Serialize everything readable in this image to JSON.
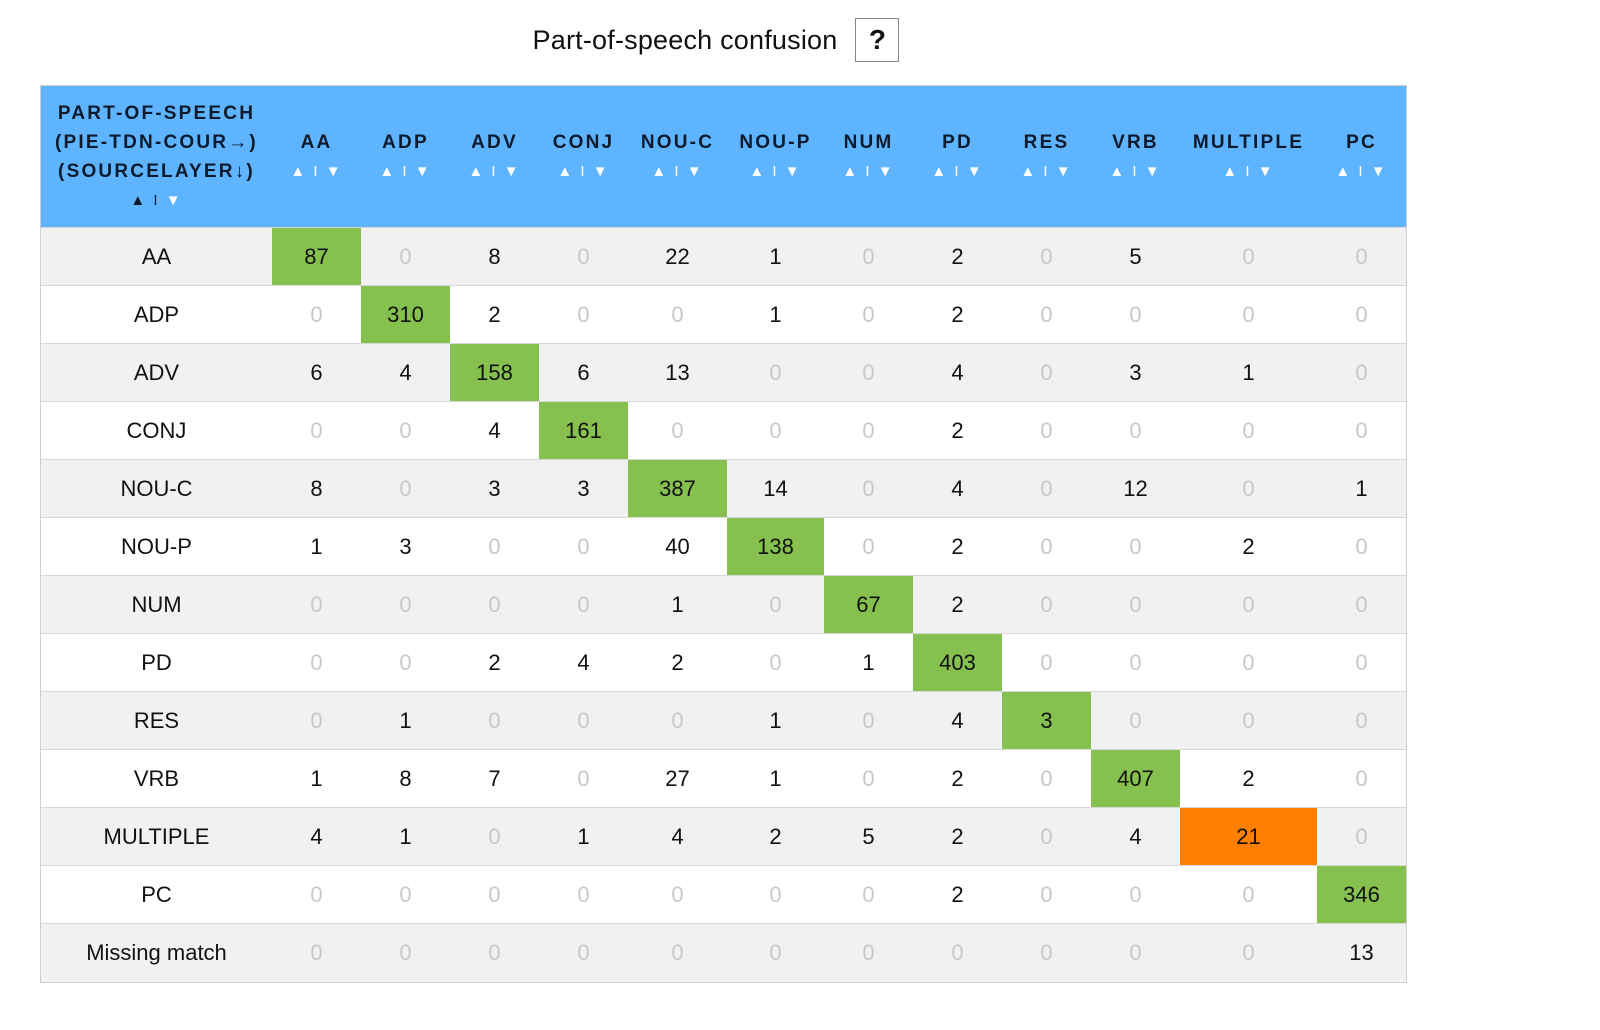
{
  "title": "Part-of-speech confusion",
  "help_label": "?",
  "corner_header": {
    "line1": "PART-OF-SPEECH",
    "line2": "(PIE-TDN-COUR→)",
    "line3": "(SOURCELAYER↓)"
  },
  "sort_up": "▲",
  "sort_sep": "I",
  "sort_down": "▼",
  "colors": {
    "header": "#5fb4ff",
    "diagonal": "#86c04e",
    "highlight": "#ff8000"
  },
  "columns": [
    "AA",
    "ADP",
    "ADV",
    "CONJ",
    "NOU-C",
    "NOU-P",
    "NUM",
    "PD",
    "RES",
    "VRB",
    "MULTIPLE",
    "PC"
  ],
  "rows": [
    {
      "label": "AA",
      "values": [
        87,
        0,
        8,
        0,
        22,
        1,
        0,
        2,
        0,
        5,
        0,
        0
      ]
    },
    {
      "label": "ADP",
      "values": [
        0,
        310,
        2,
        0,
        0,
        1,
        0,
        2,
        0,
        0,
        0,
        0
      ]
    },
    {
      "label": "ADV",
      "values": [
        6,
        4,
        158,
        6,
        13,
        0,
        0,
        4,
        0,
        3,
        1,
        0
      ]
    },
    {
      "label": "CONJ",
      "values": [
        0,
        0,
        4,
        161,
        0,
        0,
        0,
        2,
        0,
        0,
        0,
        0
      ]
    },
    {
      "label": "NOU-C",
      "values": [
        8,
        0,
        3,
        3,
        387,
        14,
        0,
        4,
        0,
        12,
        0,
        1
      ]
    },
    {
      "label": "NOU-P",
      "values": [
        1,
        3,
        0,
        0,
        40,
        138,
        0,
        2,
        0,
        0,
        2,
        0
      ]
    },
    {
      "label": "NUM",
      "values": [
        0,
        0,
        0,
        0,
        1,
        0,
        67,
        2,
        0,
        0,
        0,
        0
      ]
    },
    {
      "label": "PD",
      "values": [
        0,
        0,
        2,
        4,
        2,
        0,
        1,
        403,
        0,
        0,
        0,
        0
      ]
    },
    {
      "label": "RES",
      "values": [
        0,
        1,
        0,
        0,
        0,
        1,
        0,
        4,
        3,
        0,
        0,
        0
      ]
    },
    {
      "label": "VRB",
      "values": [
        1,
        8,
        7,
        0,
        27,
        1,
        0,
        2,
        0,
        407,
        2,
        0
      ]
    },
    {
      "label": "MULTIPLE",
      "values": [
        4,
        1,
        0,
        1,
        4,
        2,
        5,
        2,
        0,
        4,
        21,
        0
      ]
    },
    {
      "label": "PC",
      "values": [
        0,
        0,
        0,
        0,
        0,
        0,
        0,
        2,
        0,
        0,
        0,
        346
      ]
    },
    {
      "label": "Missing match",
      "values": [
        0,
        0,
        0,
        0,
        0,
        0,
        0,
        0,
        0,
        0,
        0,
        13
      ]
    }
  ]
}
